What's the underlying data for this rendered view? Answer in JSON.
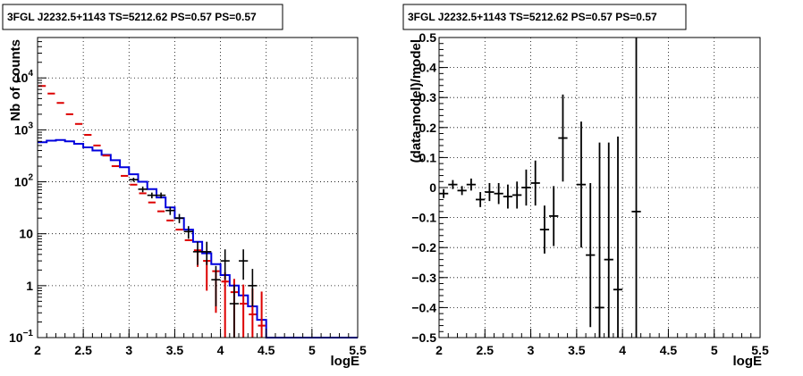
{
  "chart_data": [
    {
      "type": "line",
      "title": "3FGL J2232.5+1143 TS=5212.62 PS=0.57 PS=0.57",
      "xlabel": "logE",
      "ylabel": "Nb of counts",
      "xlim": [
        2,
        5.5
      ],
      "ylim": [
        0.1,
        60000
      ],
      "ylog": true,
      "grid": true,
      "x_ticks": [
        "2",
        "2.5",
        "3",
        "3.5",
        "4",
        "4.5",
        "5",
        "5.5"
      ],
      "y_ticks": [
        {
          "value": 0.1,
          "base": "10",
          "exp": "−1"
        },
        {
          "value": 1,
          "base": "1",
          "exp": ""
        },
        {
          "value": 10,
          "base": "10",
          "exp": ""
        },
        {
          "value": 100,
          "base": "10",
          "exp": "2"
        },
        {
          "value": 1000,
          "base": "10",
          "exp": "3"
        },
        {
          "value": 10000,
          "base": "10",
          "exp": "4"
        }
      ],
      "bin_width": 0.1,
      "series": [
        {
          "role": "model-step",
          "color": "#0000dd",
          "x": [
            2.0,
            2.1,
            2.2,
            2.3,
            2.4,
            2.5,
            2.6,
            2.7,
            2.8,
            2.9,
            3.0,
            3.1,
            3.2,
            3.3,
            3.4,
            3.5,
            3.6,
            3.7,
            3.8,
            3.9,
            4.0,
            4.1,
            4.2,
            4.3,
            4.4,
            4.5,
            4.6,
            4.7,
            4.8,
            4.9,
            5.0,
            5.1,
            5.2,
            5.3,
            5.4
          ],
          "y": [
            580,
            620,
            640,
            600,
            540,
            460,
            400,
            330,
            260,
            190,
            140,
            100,
            72,
            50,
            32,
            20,
            12,
            7,
            4.2,
            2.6,
            1.6,
            1.0,
            0.65,
            0.4,
            0.22,
            0.1,
            0.1,
            0.1,
            0.1,
            0.1,
            0.1,
            0.1,
            0.1,
            0.1,
            0.1
          ]
        },
        {
          "role": "model-points",
          "color": "#dd0000",
          "x": [
            2.05,
            2.15,
            2.25,
            2.35,
            2.45,
            2.55,
            2.65,
            2.75,
            2.85,
            2.95,
            3.05,
            3.15,
            3.25,
            3.35,
            3.45,
            3.55,
            3.65,
            3.75,
            3.85,
            3.95,
            4.05,
            4.15,
            4.25,
            4.35,
            4.45
          ],
          "y": [
            7000,
            5000,
            3300,
            2000,
            1300,
            800,
            500,
            320,
            200,
            130,
            88,
            60,
            40,
            27,
            18,
            12,
            7.5,
            4.8,
            3.0,
            1.9,
            1.2,
            0.75,
            0.45,
            0.28,
            0.17
          ],
          "err_lo": [
            0,
            0,
            0,
            0,
            0,
            0,
            0,
            0,
            0,
            0,
            0,
            0,
            0,
            0,
            0,
            0,
            0,
            2.5,
            2.2,
            1.6,
            1.1,
            0.7,
            0.43,
            0.27,
            0.165
          ],
          "err_hi": [
            0,
            0,
            0,
            0,
            0,
            0,
            0,
            0,
            0,
            0,
            0,
            0,
            0,
            0,
            0,
            0,
            0,
            0,
            0,
            0,
            0.6,
            0.6,
            0.6,
            0.6,
            0.6
          ]
        },
        {
          "role": "data",
          "color": "#000000",
          "x": [
            3.05,
            3.15,
            3.25,
            3.35,
            3.45,
            3.55,
            3.65,
            3.75,
            3.85,
            3.95,
            4.05,
            4.15,
            4.25,
            4.35
          ],
          "y": [
            110,
            72,
            55,
            55,
            28,
            20,
            11,
            4.5,
            4.5,
            1.3,
            3.0,
            0.45,
            3.0,
            1.0
          ],
          "err_lo": [
            10,
            9,
            7,
            7,
            5,
            4,
            3,
            2,
            2,
            0.9,
            1.7,
            0.35,
            1.7,
            0.6
          ],
          "err_hi": [
            10,
            9,
            7,
            7,
            5,
            4,
            3,
            2.5,
            2.5,
            1.1,
            2.0,
            0.6,
            2.0,
            1.1
          ]
        }
      ]
    },
    {
      "type": "scatter",
      "title": "3FGL J2232.5+1143 TS=5212.62 PS=0.57 PS=0.57",
      "xlabel": "logE",
      "ylabel": "(data-model)/model",
      "xlim": [
        2,
        5.5
      ],
      "ylim": [
        -0.5,
        0.5
      ],
      "grid": true,
      "x_ticks": [
        "2",
        "2.5",
        "3",
        "3.5",
        "4",
        "4.5",
        "5",
        "5.5"
      ],
      "y_ticks": [
        "−0.5",
        "−0.4",
        "−0.3",
        "−0.2",
        "−0.1",
        "0",
        "0.1",
        "0.2",
        "0.3",
        "0.4",
        "0.5"
      ],
      "bin_width": 0.1,
      "series": [
        {
          "role": "residuals",
          "color": "#000000",
          "x": [
            2.05,
            2.15,
            2.25,
            2.35,
            2.45,
            2.55,
            2.65,
            2.75,
            2.85,
            2.95,
            3.05,
            3.15,
            3.25,
            3.35,
            3.55,
            3.65,
            3.75,
            3.85,
            3.95,
            4.15
          ],
          "y": [
            -0.02,
            0.01,
            -0.01,
            0.01,
            -0.04,
            -0.015,
            -0.02,
            -0.03,
            -0.025,
            0.0,
            0.015,
            -0.14,
            -0.095,
            0.165,
            0.01,
            -0.225,
            -0.4,
            -0.24,
            -0.34,
            -0.08
          ],
          "err": [
            0.015,
            0.015,
            0.015,
            0.02,
            0.025,
            0.03,
            0.035,
            0.04,
            0.045,
            0.06,
            0.075,
            0.08,
            0.1,
            0.145,
            0.21,
            0.24,
            0.55,
            0.39,
            0.51,
            0.7
          ]
        }
      ]
    }
  ]
}
